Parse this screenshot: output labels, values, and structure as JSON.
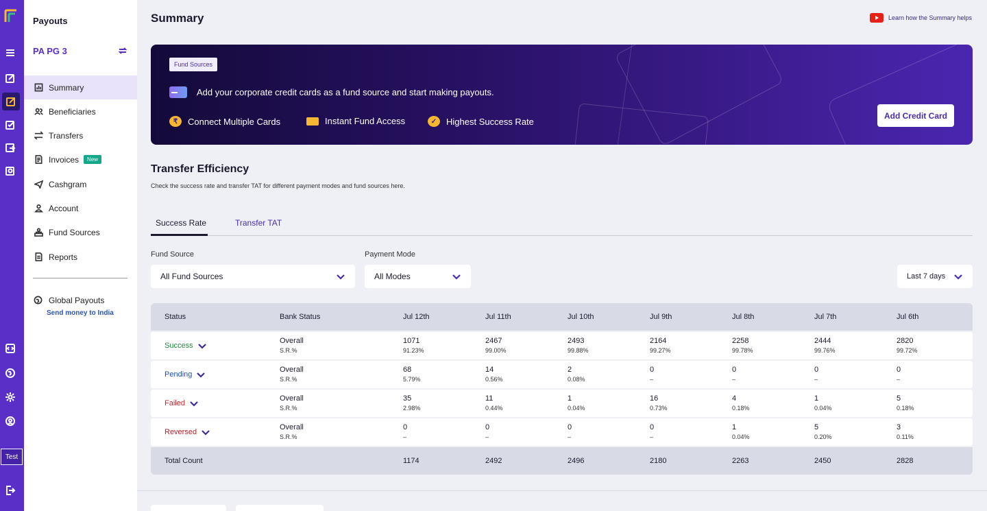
{
  "rail": {
    "test_label": "Test"
  },
  "sidebar": {
    "title": "Payouts",
    "account": "PA PG 3",
    "items": [
      {
        "label": "Summary",
        "icon": "summary-icon"
      },
      {
        "label": "Beneficiaries",
        "icon": "beneficiaries-icon"
      },
      {
        "label": "Transfers",
        "icon": "transfers-icon"
      },
      {
        "label": "Invoices",
        "icon": "invoices-icon",
        "badge": "New"
      },
      {
        "label": "Cashgram",
        "icon": "cashgram-icon"
      },
      {
        "label": "Account",
        "icon": "account-icon"
      },
      {
        "label": "Fund Sources",
        "icon": "fund-sources-icon"
      },
      {
        "label": "Reports",
        "icon": "reports-icon"
      }
    ],
    "global_payouts": "Global Payouts",
    "global_payouts_sub": "Send money to India"
  },
  "header": {
    "title": "Summary",
    "help_link": "Learn how the Summary helps"
  },
  "banner": {
    "tag": "Fund Sources",
    "headline": "Add your corporate credit cards as a fund source and start making payouts.",
    "features": [
      "Connect Multiple Cards",
      "Instant Fund Access",
      "Highest Success Rate"
    ],
    "cta": "Add Credit Card"
  },
  "efficiency": {
    "title": "Transfer Efficiency",
    "subtitle": "Check the success rate and transfer TAT for different payment modes and fund sources here.",
    "tabs": [
      "Success Rate",
      "Transfer TAT"
    ],
    "filters": {
      "fund_source_label": "Fund Source",
      "fund_source_value": "All Fund Sources",
      "payment_mode_label": "Payment Mode",
      "payment_mode_value": "All Modes",
      "date_range_value": "Last 7 days"
    },
    "table": {
      "headers": [
        "Status",
        "Bank Status",
        "Jul 12th",
        "Jul 11th",
        "Jul 10th",
        "Jul 9th",
        "Jul 8th",
        "Jul 7th",
        "Jul 6th"
      ],
      "rows": [
        {
          "status": "Success",
          "color": "#1e8a3c",
          "bank_main": "Overall",
          "bank_sub": "S.R.%",
          "values": [
            [
              "1071",
              "91.23%"
            ],
            [
              "2467",
              "99.00%"
            ],
            [
              "2493",
              "99.88%"
            ],
            [
              "2164",
              "99.27%"
            ],
            [
              "2258",
              "99.78%"
            ],
            [
              "2444",
              "99.76%"
            ],
            [
              "2820",
              "99.72%"
            ]
          ]
        },
        {
          "status": "Pending",
          "color": "#1f4fa8",
          "bank_main": "Overall",
          "bank_sub": "S.R.%",
          "values": [
            [
              "68",
              "5.79%"
            ],
            [
              "14",
              "0.56%"
            ],
            [
              "2",
              "0.08%"
            ],
            [
              "0",
              "–"
            ],
            [
              "0",
              "–"
            ],
            [
              "0",
              "–"
            ],
            [
              "0",
              "–"
            ]
          ]
        },
        {
          "status": "Failed",
          "color": "#c4262e",
          "bank_main": "Overall",
          "bank_sub": "S.R.%",
          "values": [
            [
              "35",
              "2.98%"
            ],
            [
              "11",
              "0.44%"
            ],
            [
              "1",
              "0.04%"
            ],
            [
              "16",
              "0.73%"
            ],
            [
              "4",
              "0.18%"
            ],
            [
              "1",
              "0.04%"
            ],
            [
              "5",
              "0.18%"
            ]
          ]
        },
        {
          "status": "Reversed",
          "color": "#b5202a",
          "bank_main": "Overall",
          "bank_sub": "S.R.%",
          "values": [
            [
              "0",
              "–"
            ],
            [
              "0",
              "–"
            ],
            [
              "0",
              "–"
            ],
            [
              "0",
              "–"
            ],
            [
              "1",
              "0.04%"
            ],
            [
              "5",
              "0.20%"
            ],
            [
              "3",
              "0.11%"
            ]
          ]
        }
      ],
      "total_label": "Total Count",
      "totals": [
        "1174",
        "2492",
        "2496",
        "2180",
        "2263",
        "2450",
        "2828"
      ]
    }
  },
  "colors": {
    "brand": "#5a2fc7",
    "accent": "#4b2bb0"
  }
}
